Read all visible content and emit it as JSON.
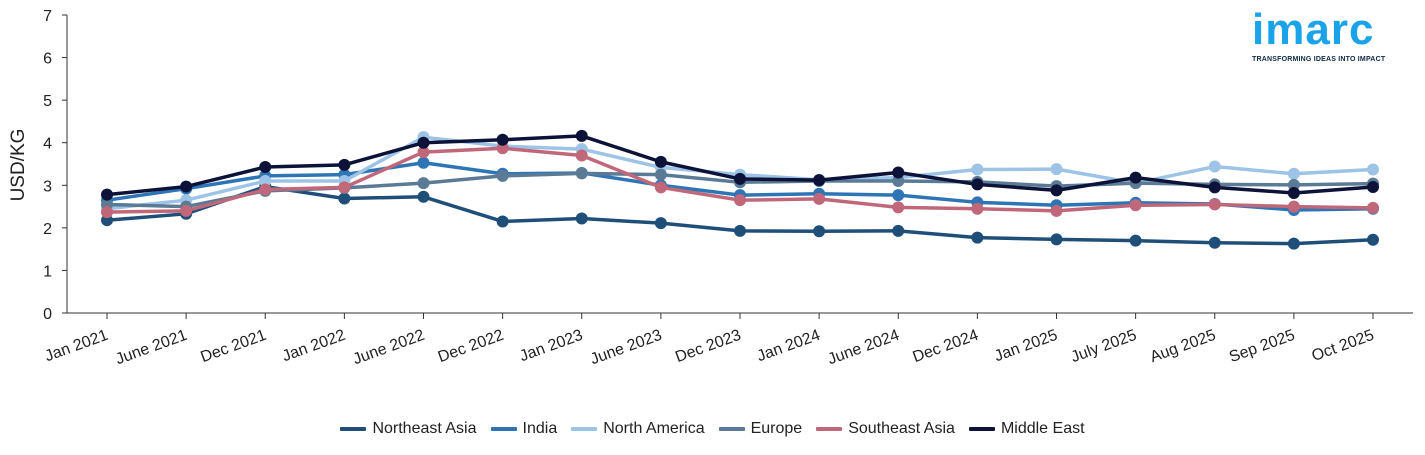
{
  "logo": {
    "word": "imarc",
    "tagline": "TRANSFORMING IDEAS INTO IMPACT"
  },
  "chart_data": {
    "type": "line",
    "title": "",
    "xlabel": "",
    "ylabel": "USD/KG",
    "ylim": [
      0,
      7
    ],
    "yticks": [
      0,
      1,
      2,
      3,
      4,
      5,
      6,
      7
    ],
    "grid": false,
    "legend_position": "bottom",
    "categories": [
      "Jan 2021",
      "June 2021",
      "Dec 2021",
      "Jan 2022",
      "June 2022",
      "Dec 2022",
      "Jan 2023",
      "June 2023",
      "Dec 2023",
      "Jan 2024",
      "June 2024",
      "Dec 2024",
      "Jan 2025",
      "July 2025",
      "Aug 2025",
      "Sep 2025",
      "Oct 2025"
    ],
    "series": [
      {
        "name": "Northeast Asia",
        "color": "#1f4e79",
        "values": [
          2.18,
          2.33,
          2.97,
          2.69,
          2.73,
          2.15,
          2.22,
          2.11,
          1.93,
          1.92,
          1.93,
          1.77,
          1.73,
          1.7,
          1.65,
          1.63,
          1.72
        ]
      },
      {
        "name": "India",
        "color": "#2e75b6",
        "values": [
          2.65,
          2.92,
          3.22,
          3.25,
          3.53,
          3.27,
          3.29,
          3.0,
          2.77,
          2.8,
          2.77,
          2.6,
          2.53,
          2.59,
          2.56,
          2.42,
          2.45
        ]
      },
      {
        "name": "North America",
        "color": "#9dc3e6",
        "values": [
          2.45,
          2.65,
          3.1,
          3.1,
          4.13,
          3.92,
          3.85,
          3.42,
          3.25,
          3.13,
          3.18,
          3.37,
          3.38,
          3.05,
          3.44,
          3.27,
          3.37
        ]
      },
      {
        "name": "Europe",
        "color": "#5b7a95",
        "values": [
          2.55,
          2.5,
          2.87,
          2.94,
          3.05,
          3.22,
          3.28,
          3.25,
          3.07,
          3.1,
          3.1,
          3.08,
          2.98,
          3.05,
          3.02,
          3.01,
          3.04
        ]
      },
      {
        "name": "Southeast Asia",
        "color": "#c0687a",
        "values": [
          2.37,
          2.4,
          2.9,
          2.95,
          3.78,
          3.87,
          3.7,
          2.95,
          2.65,
          2.68,
          2.48,
          2.45,
          2.4,
          2.53,
          2.55,
          2.5,
          2.47
        ]
      },
      {
        "name": "Middle East",
        "color": "#0d1238",
        "values": [
          2.78,
          2.97,
          3.43,
          3.48,
          4.0,
          4.07,
          4.16,
          3.55,
          3.15,
          3.12,
          3.3,
          3.02,
          2.88,
          3.18,
          2.95,
          2.82,
          2.96
        ]
      }
    ]
  }
}
